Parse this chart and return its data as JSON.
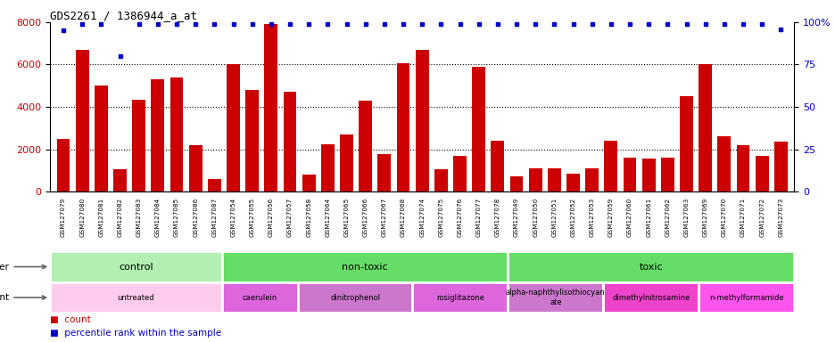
{
  "title": "GDS2261 / 1386944_a_at",
  "samples": [
    "GSM127079",
    "GSM127080",
    "GSM127081",
    "GSM127082",
    "GSM127083",
    "GSM127084",
    "GSM127085",
    "GSM127086",
    "GSM127087",
    "GSM127054",
    "GSM127055",
    "GSM127056",
    "GSM127057",
    "GSM127058",
    "GSM127064",
    "GSM127065",
    "GSM127066",
    "GSM127067",
    "GSM127068",
    "GSM127074",
    "GSM127075",
    "GSM127076",
    "GSM127077",
    "GSM127078",
    "GSM127049",
    "GSM127050",
    "GSM127051",
    "GSM127052",
    "GSM127053",
    "GSM127059",
    "GSM127060",
    "GSM127061",
    "GSM127062",
    "GSM127063",
    "GSM127069",
    "GSM127070",
    "GSM127071",
    "GSM127072",
    "GSM127073"
  ],
  "counts": [
    2500,
    6700,
    5000,
    1050,
    4350,
    5300,
    5400,
    2200,
    600,
    6000,
    4800,
    7900,
    4700,
    800,
    2250,
    2700,
    4300,
    1750,
    6050,
    6700,
    1050,
    1700,
    5900,
    2400,
    700,
    1100,
    1100,
    850,
    1100,
    2400,
    1600,
    1550,
    1600,
    4500,
    6000,
    2600,
    2200,
    1700,
    2350
  ],
  "percentile_vals": [
    95,
    99,
    99,
    80,
    99,
    99,
    99,
    99,
    99,
    99,
    99,
    99,
    99,
    99,
    99,
    99,
    99,
    99,
    99,
    99,
    99,
    99,
    99,
    99,
    99,
    99,
    99,
    99,
    99,
    99,
    99,
    99,
    99,
    99,
    99,
    99,
    99,
    99,
    96
  ],
  "bar_color": "#cc0000",
  "dot_color": "#0000cc",
  "ylim_left": [
    0,
    8000
  ],
  "ylim_right": [
    0,
    100
  ],
  "yticks_left": [
    0,
    2000,
    4000,
    6000,
    8000
  ],
  "ytick_labels_left": [
    "0",
    "2000",
    "4000",
    "6000",
    "8000"
  ],
  "yticks_right": [
    0,
    25,
    50,
    75,
    100
  ],
  "ytick_labels_right": [
    "0",
    "25",
    "50",
    "75",
    "100%"
  ],
  "groups_other": [
    {
      "label": "control",
      "start": 0,
      "end": 9,
      "color": "#b2f0b2"
    },
    {
      "label": "non-toxic",
      "start": 9,
      "end": 24,
      "color": "#66dd66"
    },
    {
      "label": "toxic",
      "start": 24,
      "end": 39,
      "color": "#66dd66"
    }
  ],
  "groups_agent": [
    {
      "label": "untreated",
      "start": 0,
      "end": 9,
      "color": "#ffccee"
    },
    {
      "label": "caerulein",
      "start": 9,
      "end": 13,
      "color": "#dd66dd"
    },
    {
      "label": "dinitrophenol",
      "start": 13,
      "end": 19,
      "color": "#cc77cc"
    },
    {
      "label": "rosiglitazone",
      "start": 19,
      "end": 24,
      "color": "#dd66dd"
    },
    {
      "label": "alpha-naphthylisothiocyan\nate",
      "start": 24,
      "end": 29,
      "color": "#cc77cc"
    },
    {
      "label": "dimethylnitrosamine",
      "start": 29,
      "end": 34,
      "color": "#ee44cc"
    },
    {
      "label": "n-methylformamide",
      "start": 34,
      "end": 39,
      "color": "#ff55ee"
    }
  ],
  "bg_color": "#ffffff"
}
